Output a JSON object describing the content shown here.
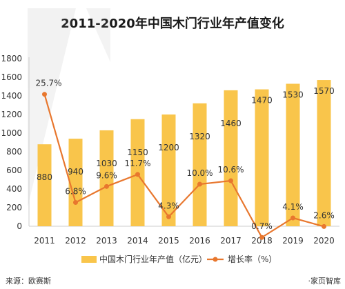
{
  "title": "2011-2020年中国木门行业年产值变化",
  "source": "来源：欧赛斯",
  "credit": "·家页智库",
  "watermark": "家页智库",
  "chart_data": {
    "type": "bar",
    "categories": [
      "2011",
      "2012",
      "2013",
      "2014",
      "2015",
      "2016",
      "2017",
      "2018",
      "2019",
      "2020"
    ],
    "ylim": [
      0,
      1800
    ],
    "yticks": [
      0,
      200,
      400,
      600,
      800,
      1000,
      1200,
      1400,
      1600,
      1800
    ],
    "grid": false,
    "legend_position": "bottom",
    "series": [
      {
        "name": "中国木门行业年产值（亿元）",
        "type": "bar",
        "color": "#F9C54B",
        "values": [
          880,
          940,
          1030,
          1150,
          1200,
          1320,
          1460,
          1470,
          1530,
          1570
        ],
        "labels": [
          "880",
          "940",
          "1030",
          "1150",
          "1200",
          "1320",
          "1460",
          "1470",
          "1530",
          "1570"
        ]
      },
      {
        "name": "增长率（%）",
        "type": "line",
        "color": "#E8772E",
        "values": [
          25.7,
          6.8,
          9.6,
          11.7,
          4.3,
          10.0,
          10.6,
          0.7,
          4.1,
          2.6
        ],
        "labels": [
          "25.7%",
          "6.8%",
          "9.6%",
          "11.7%",
          "4.3%",
          "10.0%",
          "10.6%",
          "0.7%",
          "4.1%",
          "2.6%"
        ]
      }
    ]
  }
}
